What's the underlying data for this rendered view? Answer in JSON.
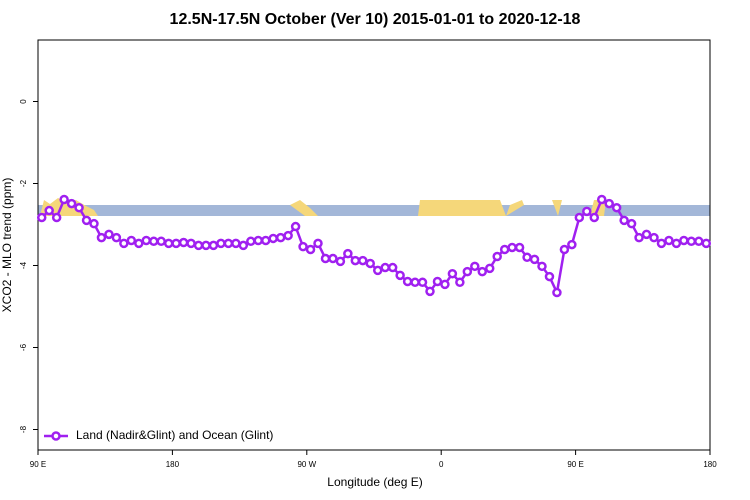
{
  "chart_data": {
    "type": "line",
    "title": "12.5N-17.5N October (Ver 10)   2015-01-01 to 2020-12-18",
    "x_label": "Longitude (deg E)",
    "y_label": "XCO2 - MLO trend (ppm)",
    "xlim": [
      90,
      540
    ],
    "xticks": [
      {
        "value": 90,
        "label": "90 E"
      },
      180,
      {
        "value": 270,
        "label": "90 W"
      },
      {
        "value": 360,
        "label": "0"
      },
      {
        "value": 450,
        "label": "90 E"
      },
      {
        "value": 540,
        "label": "180"
      }
    ],
    "ylim": [
      -8.5,
      1.5
    ],
    "yticks": [
      0,
      -2,
      -4,
      -6,
      -8
    ],
    "legend": "bottom-left",
    "x": [
      92.5,
      97.5,
      102.5,
      107.5,
      112.5,
      117.5,
      122.5,
      127.5,
      132.5,
      137.5,
      142.5,
      147.5,
      152.5,
      157.5,
      162.5,
      167.5,
      172.5,
      177.5,
      182.5,
      187.5,
      192.5,
      197.5,
      202.5,
      207.5,
      212.5,
      217.5,
      222.5,
      227.5,
      232.5,
      237.5,
      242.5,
      247.5,
      252.5,
      257.5,
      262.5,
      267.5,
      272.5,
      277.5,
      282.5,
      287.5,
      292.5,
      297.5,
      302.5,
      307.5,
      312.5,
      317.5,
      322.5,
      327.5,
      332.5,
      337.5,
      342.5,
      347.5,
      352.5,
      357.5,
      362.5,
      367.5,
      372.5,
      377.5,
      382.5,
      387.5,
      392.5,
      397.5,
      402.5,
      407.5,
      412.5,
      417.5,
      422.5,
      427.5,
      432.5,
      437.5,
      442.5,
      447.5,
      452.5,
      457.5,
      462.5,
      467.5,
      472.5,
      477.5,
      482.5,
      487.5,
      492.5,
      497.5,
      502.5,
      507.5,
      512.5,
      517.5,
      522.5,
      527.5,
      532.5,
      537.5
    ],
    "series": [
      {
        "name": "Land (Nadir&Glint) and Ocean (Glint)",
        "color": "#a020f0",
        "values": [
          -2.83,
          -2.66,
          -2.83,
          -2.39,
          -2.49,
          -2.59,
          -2.9,
          -2.98,
          -3.32,
          -3.24,
          -3.32,
          -3.46,
          -3.39,
          -3.46,
          -3.39,
          -3.41,
          -3.41,
          -3.46,
          -3.46,
          -3.44,
          -3.46,
          -3.51,
          -3.51,
          -3.51,
          -3.46,
          -3.46,
          -3.46,
          -3.51,
          -3.41,
          -3.39,
          -3.39,
          -3.34,
          -3.32,
          -3.27,
          -3.05,
          -3.54,
          -3.61,
          -3.46,
          -3.83,
          -3.83,
          -3.9,
          -3.71,
          -3.88,
          -3.88,
          -3.95,
          -4.12,
          -4.05,
          -4.05,
          -4.24,
          -4.39,
          -4.41,
          -4.41,
          -4.63,
          -4.39,
          -4.46,
          -4.2,
          -4.41,
          -4.15,
          -4.02,
          -4.15,
          -4.07,
          -3.78,
          -3.61,
          -3.56,
          -3.56,
          -3.8,
          -3.85,
          -4.02,
          -4.27,
          -4.66,
          -3.61,
          -3.49,
          -2.83,
          -2.68,
          -2.83,
          -2.39,
          -2.49,
          -2.59,
          -2.9,
          -2.98,
          -3.32,
          -3.24,
          -3.32,
          -3.46,
          -3.39,
          -3.46,
          -3.39,
          -3.41,
          -3.41,
          -3.46
        ]
      }
    ]
  }
}
